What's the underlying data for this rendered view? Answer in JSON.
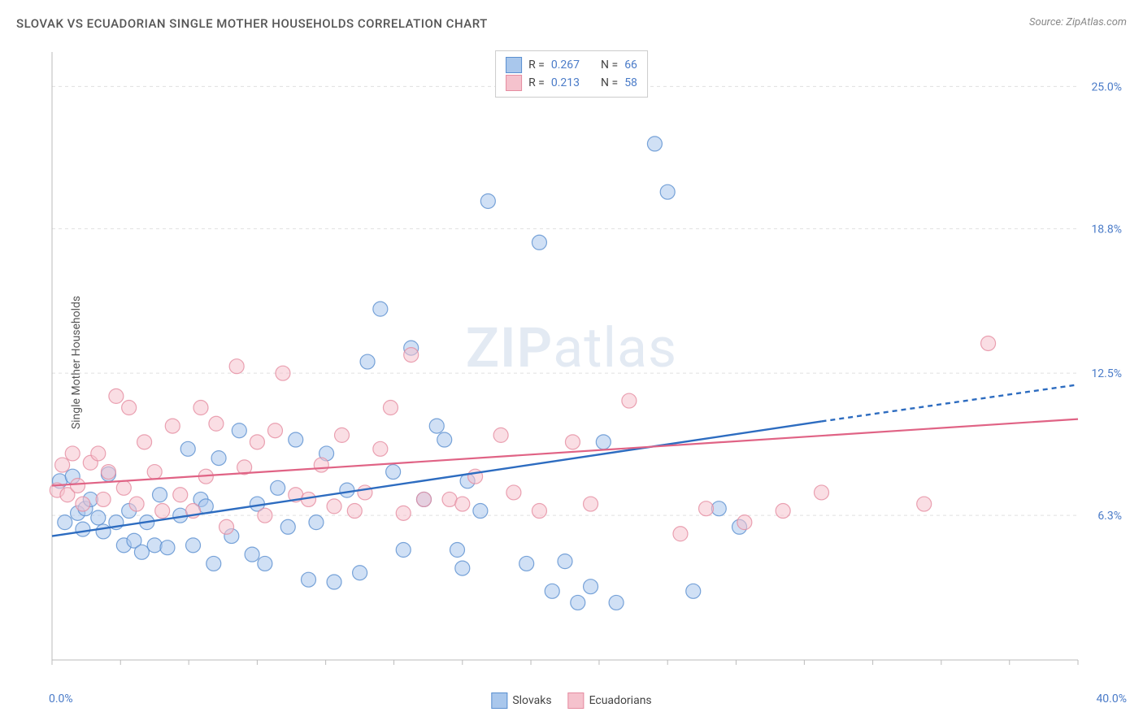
{
  "title": "SLOVAK VS ECUADORIAN SINGLE MOTHER HOUSEHOLDS CORRELATION CHART",
  "source": "Source: ZipAtlas.com",
  "ylabel": "Single Mother Households",
  "watermark_bold": "ZIP",
  "watermark_light": "atlas",
  "chart": {
    "type": "scatter",
    "xlim": [
      0,
      40
    ],
    "ylim": [
      0,
      26.5
    ],
    "x_axis_labels": {
      "min": "0.0%",
      "max": "40.0%"
    },
    "y_axis_ticks": [
      {
        "value": 6.3,
        "label": "6.3%"
      },
      {
        "value": 12.5,
        "label": "12.5%"
      },
      {
        "value": 18.8,
        "label": "18.8%"
      },
      {
        "value": 25.0,
        "label": "25.0%"
      }
    ],
    "x_ticks_minor": [
      0,
      2.67,
      5.33,
      8,
      10.67,
      13.33,
      16,
      18.67,
      21.33,
      24,
      26.67,
      29.33,
      32,
      34.67,
      37.33,
      40
    ],
    "grid_color": "#e0e0e0",
    "grid_dash": "4,4",
    "axis_line_color": "#bbbbbb",
    "background_color": "#ffffff",
    "point_radius": 9,
    "point_opacity": 0.55,
    "point_stroke_width": 1.2,
    "series": [
      {
        "name": "Slovaks",
        "color_fill": "#a9c7ec",
        "color_stroke": "#5a8fd0",
        "trend": {
          "x1": 0,
          "y1": 5.4,
          "x2_solid": 30,
          "y2_solid": 10.4,
          "x2_dash": 40,
          "y2_dash": 12.0,
          "color": "#2d6cc0",
          "width": 2.4,
          "dash": "6,5"
        },
        "stats": {
          "R": "0.267",
          "N": "66"
        },
        "points": [
          [
            0.3,
            7.8
          ],
          [
            0.5,
            6.0
          ],
          [
            0.8,
            8.0
          ],
          [
            1.0,
            6.4
          ],
          [
            1.2,
            5.7
          ],
          [
            1.3,
            6.6
          ],
          [
            1.5,
            7.0
          ],
          [
            1.8,
            6.2
          ],
          [
            2.0,
            5.6
          ],
          [
            2.2,
            8.1
          ],
          [
            2.5,
            6.0
          ],
          [
            2.8,
            5.0
          ],
          [
            3.0,
            6.5
          ],
          [
            3.2,
            5.2
          ],
          [
            3.5,
            4.7
          ],
          [
            3.7,
            6.0
          ],
          [
            4.0,
            5.0
          ],
          [
            4.2,
            7.2
          ],
          [
            4.5,
            4.9
          ],
          [
            5.0,
            6.3
          ],
          [
            5.3,
            9.2
          ],
          [
            5.5,
            5.0
          ],
          [
            5.8,
            7.0
          ],
          [
            6.0,
            6.7
          ],
          [
            6.3,
            4.2
          ],
          [
            6.5,
            8.8
          ],
          [
            7.0,
            5.4
          ],
          [
            7.3,
            10.0
          ],
          [
            7.8,
            4.6
          ],
          [
            8.0,
            6.8
          ],
          [
            8.3,
            4.2
          ],
          [
            8.8,
            7.5
          ],
          [
            9.2,
            5.8
          ],
          [
            9.5,
            9.6
          ],
          [
            10.0,
            3.5
          ],
          [
            10.3,
            6.0
          ],
          [
            10.7,
            9.0
          ],
          [
            11.0,
            3.4
          ],
          [
            11.5,
            7.4
          ],
          [
            12.0,
            3.8
          ],
          [
            12.3,
            13.0
          ],
          [
            12.8,
            15.3
          ],
          [
            13.3,
            8.2
          ],
          [
            13.7,
            4.8
          ],
          [
            14.0,
            13.6
          ],
          [
            14.5,
            7.0
          ],
          [
            15.0,
            10.2
          ],
          [
            15.3,
            9.6
          ],
          [
            15.8,
            4.8
          ],
          [
            16.2,
            7.8
          ],
          [
            16.7,
            6.5
          ],
          [
            17.0,
            20.0
          ],
          [
            16.0,
            4.0
          ],
          [
            18.5,
            4.2
          ],
          [
            19.0,
            18.2
          ],
          [
            19.5,
            3.0
          ],
          [
            20.0,
            4.3
          ],
          [
            20.5,
            2.5
          ],
          [
            21.0,
            3.2
          ],
          [
            21.5,
            9.5
          ],
          [
            22.0,
            2.5
          ],
          [
            23.5,
            22.5
          ],
          [
            24.0,
            20.4
          ],
          [
            25.0,
            3.0
          ],
          [
            26.0,
            6.6
          ],
          [
            26.8,
            5.8
          ]
        ]
      },
      {
        "name": "Ecuadorians",
        "color_fill": "#f5c2cd",
        "color_stroke": "#e58ca0",
        "trend": {
          "x1": 0,
          "y1": 7.6,
          "x2_solid": 40,
          "y2_solid": 10.5,
          "x2_dash": 40,
          "y2_dash": 10.5,
          "color": "#e06385",
          "width": 2.2,
          "dash": null
        },
        "stats": {
          "R": "0.213",
          "N": "58"
        },
        "points": [
          [
            0.2,
            7.4
          ],
          [
            0.4,
            8.5
          ],
          [
            0.6,
            7.2
          ],
          [
            0.8,
            9.0
          ],
          [
            1.0,
            7.6
          ],
          [
            1.2,
            6.8
          ],
          [
            1.5,
            8.6
          ],
          [
            1.8,
            9.0
          ],
          [
            2.0,
            7.0
          ],
          [
            2.2,
            8.2
          ],
          [
            2.5,
            11.5
          ],
          [
            2.8,
            7.5
          ],
          [
            3.0,
            11.0
          ],
          [
            3.3,
            6.8
          ],
          [
            3.6,
            9.5
          ],
          [
            4.0,
            8.2
          ],
          [
            4.3,
            6.5
          ],
          [
            4.7,
            10.2
          ],
          [
            5.0,
            7.2
          ],
          [
            5.5,
            6.5
          ],
          [
            5.8,
            11.0
          ],
          [
            6.0,
            8.0
          ],
          [
            6.4,
            10.3
          ],
          [
            6.8,
            5.8
          ],
          [
            7.2,
            12.8
          ],
          [
            7.5,
            8.4
          ],
          [
            8.0,
            9.5
          ],
          [
            8.3,
            6.3
          ],
          [
            8.7,
            10.0
          ],
          [
            9.0,
            12.5
          ],
          [
            9.5,
            7.2
          ],
          [
            10.0,
            7.0
          ],
          [
            10.5,
            8.5
          ],
          [
            11.0,
            6.7
          ],
          [
            11.3,
            9.8
          ],
          [
            11.8,
            6.5
          ],
          [
            12.2,
            7.3
          ],
          [
            12.8,
            9.2
          ],
          [
            13.2,
            11.0
          ],
          [
            13.7,
            6.4
          ],
          [
            14.0,
            13.3
          ],
          [
            14.5,
            7.0
          ],
          [
            15.5,
            7.0
          ],
          [
            16.0,
            6.8
          ],
          [
            16.5,
            8.0
          ],
          [
            17.5,
            9.8
          ],
          [
            18.0,
            7.3
          ],
          [
            19.0,
            6.5
          ],
          [
            20.3,
            9.5
          ],
          [
            21.0,
            6.8
          ],
          [
            22.5,
            11.3
          ],
          [
            24.5,
            5.5
          ],
          [
            25.5,
            6.6
          ],
          [
            27.0,
            6.0
          ],
          [
            28.5,
            6.5
          ],
          [
            30.0,
            7.3
          ],
          [
            34.0,
            6.8
          ],
          [
            36.5,
            13.8
          ]
        ]
      }
    ]
  },
  "legend_labels": {
    "R": "R =",
    "N": "N ="
  },
  "bottom_legend": [
    {
      "label": "Slovaks",
      "fill": "#a9c7ec",
      "stroke": "#5a8fd0"
    },
    {
      "label": "Ecuadorians",
      "fill": "#f5c2cd",
      "stroke": "#e58ca0"
    }
  ]
}
